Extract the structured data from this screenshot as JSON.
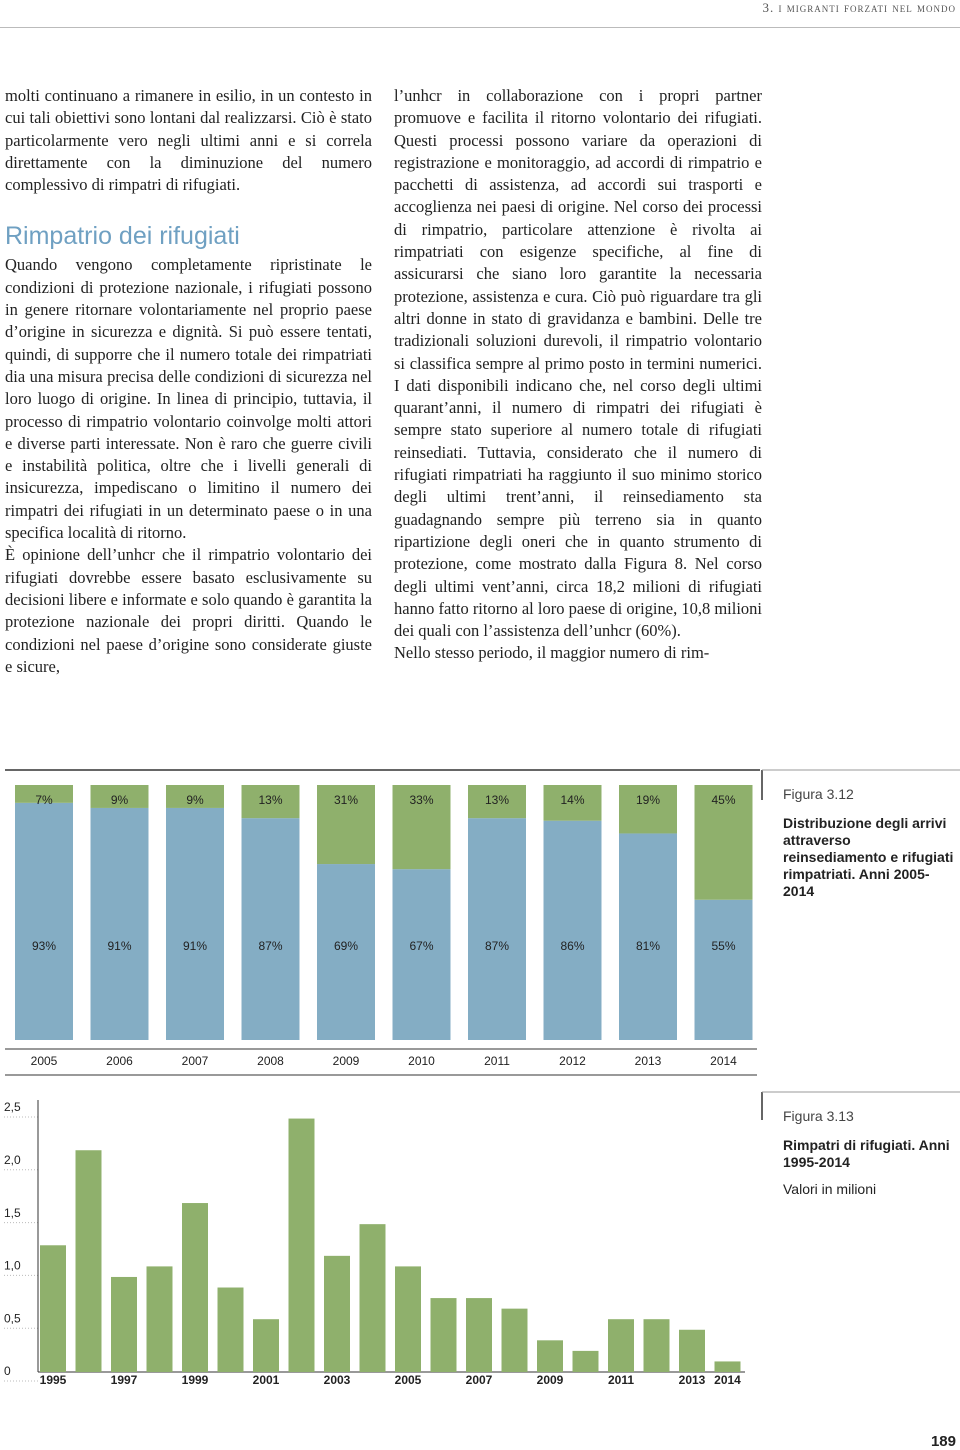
{
  "header": {
    "running_title": "3. i migranti forzati nel mondo"
  },
  "left_column": {
    "intro": "molti continuano a rimanere in esilio, in un contesto in cui tali obiettivi sono lontani dal realizzarsi. Ciò è stato particolarmente vero negli ultimi anni e si correla direttamente con la diminuzione del numero complessivo di rimpatri di rifugiati.",
    "heading": "Rimpatrio dei rifugiati",
    "body": "Quando vengono completamente ripristinate le condizioni di protezione nazionale, i rifugiati possono in genere ritornare volontariamente nel proprio paese d’origine in sicurezza e dignità. Si può essere tentati, quindi, di supporre che il numero totale dei rimpatriati dia una misura precisa delle condizioni di sicurezza nel loro luogo di origine. In linea di principio, tuttavia, il processo di rimpatrio volontario coinvolge molti attori e diverse parti interessate. Non è raro che guerre civili e instabilità politica, oltre che i livelli generali di insicurezza, impediscano o limitino il numero dei rimpatri dei rifugiati in un determinato paese o in una specifica località di ritorno.",
    "body2": "È opinione dell’unhcr che il rimpatrio volontario dei rifugiati dovrebbe essere basato esclusivamente su decisioni libere e informate e solo quando è garantita la protezione nazionale dei propri diritti. Quando le condizioni nel paese d’origine sono considerate giuste e sicure,"
  },
  "right_column": {
    "body": "l’unhcr in collaborazione con i propri partner promuove e facilita il ritorno volontario dei rifugiati. Questi processi possono variare da operazioni di registrazione e monitoraggio, ad accordi di rimpatrio e pacchetti di assistenza, ad accordi sui trasporti e accoglienza nei paesi di origine. Nel corso dei processi di rimpatrio, particolare attenzione è rivolta ai rimpatriati con esigenze specifiche, al fine di assicurarsi che siano loro garantite la necessaria protezione, assistenza e cura. Ciò può riguardare tra gli altri donne in stato di gravidanza e bambini. Delle tre tradizionali soluzioni durevoli, il rimpatrio volontario si classifica sempre al primo posto in termini numerici. I dati disponibili indicano che, nel corso degli ultimi quarant’anni, il numero di rimpatri dei rifugiati è sempre stato superiore al numero totale di rifugiati reinsediati. Tuttavia, considerato che il numero di rifugiati rimpatriati ha raggiunto il suo minimo storico degli ultimi trent’anni, il reinsediamento sta guadagnando sempre più terreno sia in quanto ripartizione degli oneri che in quanto strumento di protezione, come mostrato dalla Figura 8. Nel corso degli ultimi vent’anni, circa 18,2 milioni di rifugiati hanno fatto ritorno al loro paese di origine, 10,8 milioni dei quali con l’assistenza dell’unhcr (60%).",
    "body2": "Nello stesso periodo, il maggior numero di rim-"
  },
  "chart_data": [
    {
      "type": "stacked-bar",
      "figure_label": "Figura 3.12",
      "title": "Distribuzione degli arrivi attraverso reinsediamento e rifugiati rimpatriati. Anni 2005-2014",
      "categories": [
        "2005",
        "2006",
        "2007",
        "2008",
        "2009",
        "2010",
        "2011",
        "2012",
        "2013",
        "2014"
      ],
      "ylim": [
        0,
        100
      ],
      "series": [
        {
          "color": "#84adc4",
          "values": [
            93,
            91,
            91,
            87,
            69,
            67,
            87,
            86,
            81,
            55
          ],
          "value_labels": [
            "93%",
            "91%",
            "91%",
            "87%",
            "69%",
            "67%",
            "87%",
            "86%",
            "81%",
            "55%"
          ]
        },
        {
          "color": "#8fb06c",
          "values": [
            7,
            9,
            9,
            13,
            31,
            33,
            13,
            14,
            19,
            45
          ],
          "value_labels": [
            "7%",
            "9%",
            "9%",
            "13%",
            "31%",
            "33%",
            "13%",
            "14%",
            "19%",
            "45%"
          ]
        }
      ]
    },
    {
      "type": "bar",
      "figure_label": "Figura 3.13",
      "title": "Rimpatri di rifugiati. Anni 1995-2014",
      "subtitle": "Valori in milioni",
      "categories": [
        "1995",
        null,
        "1997",
        null,
        "1999",
        null,
        "2001",
        null,
        "2003",
        null,
        "2005",
        null,
        "2007",
        null,
        "2009",
        null,
        "2011",
        null,
        "2013",
        "2014"
      ],
      "values": [
        1.2,
        2.1,
        0.9,
        1.0,
        1.6,
        0.8,
        0.5,
        2.4,
        1.1,
        1.4,
        1.0,
        0.7,
        0.7,
        0.6,
        0.3,
        0.2,
        0.5,
        0.5,
        0.4,
        0.1
      ],
      "color": "#8fb06c",
      "ylim": [
        0,
        2.5
      ],
      "yticks": [
        0,
        {
          "value": 0.5,
          "label": "0,5"
        },
        {
          "value": 1,
          "label": "1,0"
        },
        {
          "value": 1.5,
          "label": "1,5"
        },
        {
          "value": 2,
          "label": "2,0"
        },
        {
          "value": 2.5,
          "label": "2,5"
        }
      ]
    }
  ],
  "footer": {
    "page_number": "189"
  }
}
